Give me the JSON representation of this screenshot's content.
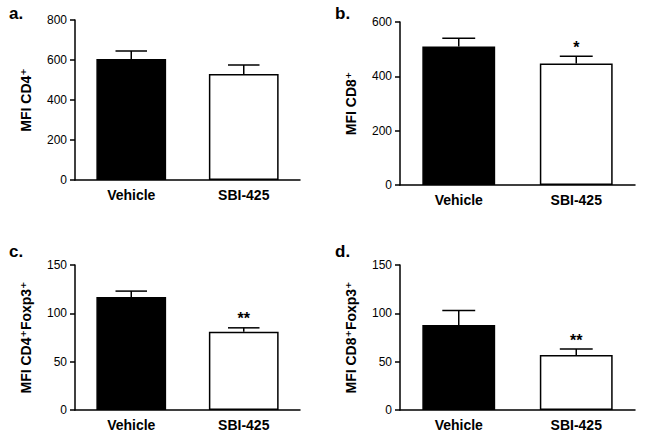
{
  "chart_data": [
    {
      "type": "bar",
      "title": "a.",
      "ylabel": "MFI CD4⁺",
      "categories": [
        "Vehicle",
        "SBI-425"
      ],
      "values": [
        605,
        530
      ],
      "errors": [
        40,
        45
      ],
      "colors": [
        "#000000",
        "#ffffff"
      ],
      "ylim": [
        0,
        800
      ],
      "yticks": [
        0,
        200,
        400,
        600,
        800
      ],
      "grid": false,
      "annotations": []
    },
    {
      "type": "bar",
      "title": "b.",
      "ylabel": "MFI CD8⁺",
      "categories": [
        "Vehicle",
        "SBI-425"
      ],
      "values": [
        510,
        447
      ],
      "errors": [
        30,
        27
      ],
      "colors": [
        "#000000",
        "#ffffff"
      ],
      "ylim": [
        0,
        600
      ],
      "yticks": [
        0,
        200,
        400,
        600
      ],
      "grid": false,
      "annotations": [
        {
          "category": "SBI-425",
          "text": "*"
        }
      ]
    },
    {
      "type": "bar",
      "title": "c.",
      "ylabel": "MFI CD4⁺Foxp3⁺",
      "categories": [
        "Vehicle",
        "SBI-425"
      ],
      "values": [
        117,
        81
      ],
      "errors": [
        6,
        4
      ],
      "colors": [
        "#000000",
        "#ffffff"
      ],
      "ylim": [
        0,
        150
      ],
      "yticks": [
        0,
        50,
        100,
        150
      ],
      "grid": false,
      "annotations": [
        {
          "category": "SBI-425",
          "text": "**"
        }
      ]
    },
    {
      "type": "bar",
      "title": "d.",
      "ylabel": "MFI CD8⁺Foxp3⁺",
      "categories": [
        "Vehicle",
        "SBI-425"
      ],
      "values": [
        88,
        57
      ],
      "errors": [
        15,
        6
      ],
      "colors": [
        "#000000",
        "#ffffff"
      ],
      "ylim": [
        0,
        150
      ],
      "yticks": [
        0,
        50,
        100,
        150
      ],
      "grid": false,
      "annotations": [
        {
          "category": "SBI-425",
          "text": "**"
        }
      ]
    }
  ]
}
